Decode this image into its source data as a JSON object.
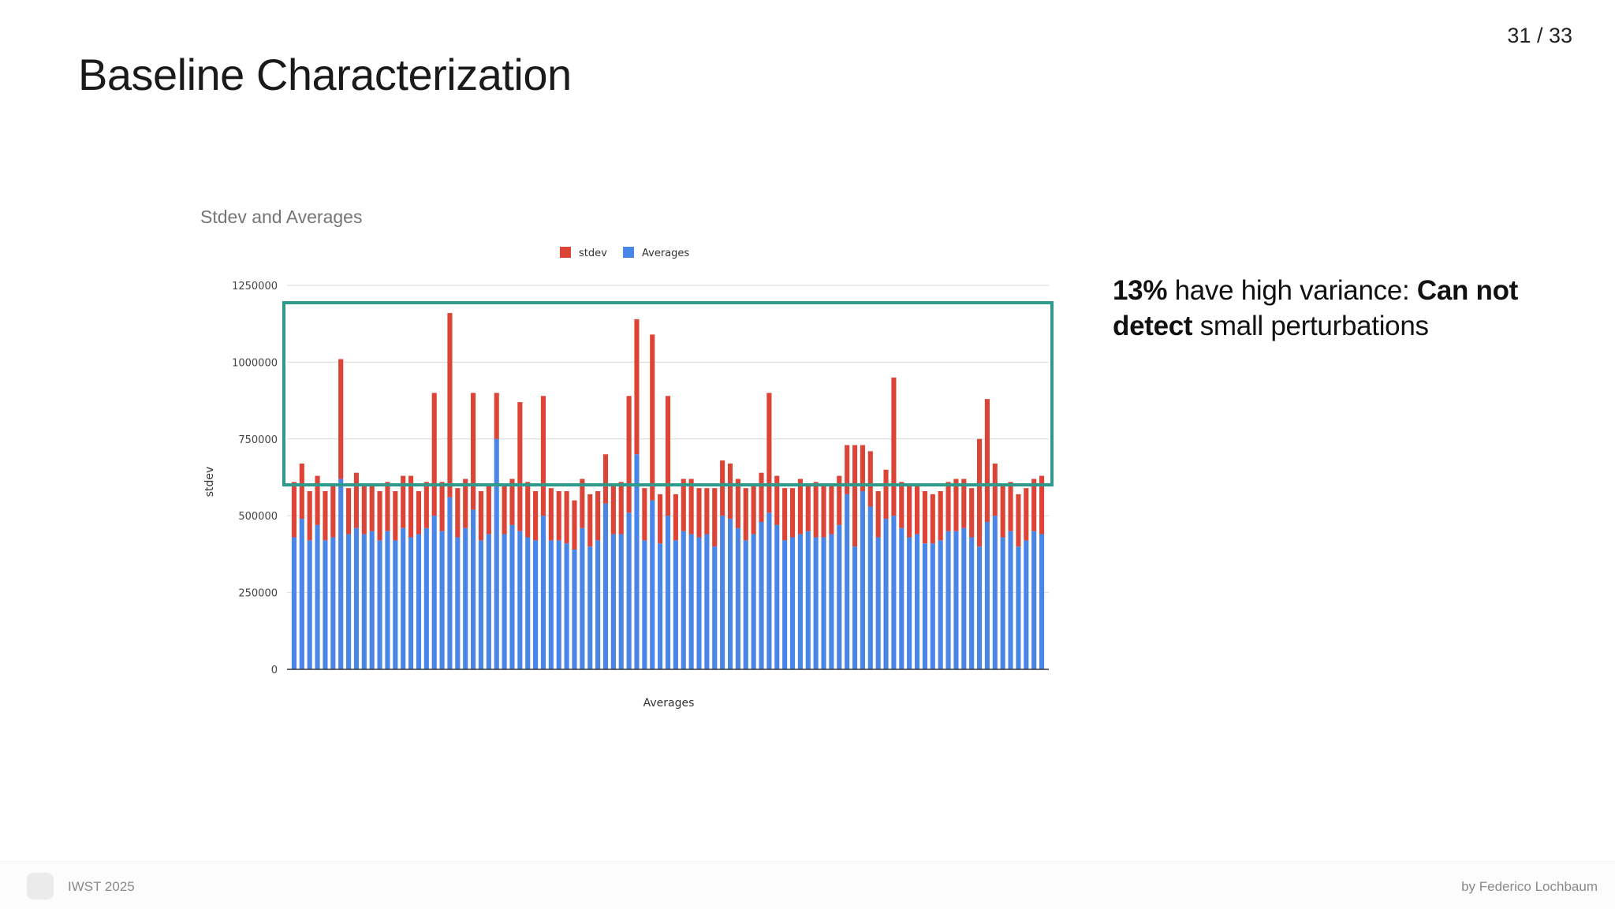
{
  "slide": {
    "title": "Baseline Characterization",
    "page_counter": "31 / 33"
  },
  "callout": {
    "part1": "13%",
    "part2": " have high variance: ",
    "part3": "Can not detect",
    "part4": " small perturbations"
  },
  "footer": {
    "event": "IWST 2025",
    "author": "by Federico Lochbaum"
  },
  "colors": {
    "stdev": "#db4437",
    "averages": "#4a86e8",
    "highlight_box": "#2e9a8c",
    "gridline": "#d9d9d9"
  },
  "chart_data": {
    "type": "bar",
    "stacked": true,
    "title": "Stdev and Averages",
    "xlabel": "Averages",
    "ylabel": "stdev",
    "ylim": [
      0,
      1250000
    ],
    "yticks": [
      "0",
      "250000",
      "500000",
      "750000",
      "1000000",
      "1250000"
    ],
    "legend_position": "top-center",
    "series": [
      {
        "name": "Averages",
        "color": "#4a86e8",
        "values": [
          430000,
          490000,
          420000,
          470000,
          420000,
          430000,
          620000,
          440000,
          460000,
          440000,
          450000,
          420000,
          450000,
          420000,
          460000,
          430000,
          440000,
          460000,
          500000,
          450000,
          560000,
          430000,
          460000,
          520000,
          420000,
          440000,
          750000,
          440000,
          470000,
          450000,
          430000,
          420000,
          500000,
          420000,
          420000,
          410000,
          390000,
          460000,
          400000,
          420000,
          540000,
          440000,
          440000,
          510000,
          700000,
          420000,
          550000,
          410000,
          500000,
          420000,
          450000,
          440000,
          430000,
          440000,
          400000,
          500000,
          490000,
          460000,
          420000,
          440000,
          480000,
          510000,
          470000,
          420000,
          430000,
          440000,
          450000,
          430000,
          430000,
          440000,
          470000,
          570000,
          400000,
          580000,
          530000,
          430000,
          490000,
          500000,
          460000,
          430000,
          440000,
          410000,
          410000,
          420000,
          450000,
          450000,
          460000,
          430000,
          400000,
          480000,
          500000,
          430000,
          450000,
          400000,
          420000,
          450000,
          440000
        ]
      },
      {
        "name": "stdev",
        "color": "#db4437",
        "values": [
          180000,
          180000,
          160000,
          160000,
          160000,
          170000,
          390000,
          150000,
          180000,
          160000,
          150000,
          160000,
          160000,
          160000,
          170000,
          200000,
          140000,
          150000,
          400000,
          160000,
          600000,
          160000,
          160000,
          380000,
          160000,
          160000,
          150000,
          160000,
          150000,
          420000,
          180000,
          160000,
          390000,
          170000,
          160000,
          170000,
          160000,
          160000,
          170000,
          160000,
          160000,
          160000,
          170000,
          380000,
          440000,
          170000,
          540000,
          160000,
          390000,
          150000,
          170000,
          180000,
          160000,
          150000,
          190000,
          180000,
          180000,
          160000,
          170000,
          160000,
          160000,
          390000,
          160000,
          170000,
          160000,
          180000,
          150000,
          180000,
          170000,
          160000,
          160000,
          160000,
          330000,
          150000,
          180000,
          150000,
          160000,
          450000,
          150000,
          170000,
          160000,
          170000,
          160000,
          160000,
          160000,
          170000,
          160000,
          160000,
          350000,
          400000,
          170000,
          170000,
          160000,
          170000,
          170000,
          170000,
          190000
        ]
      }
    ]
  }
}
